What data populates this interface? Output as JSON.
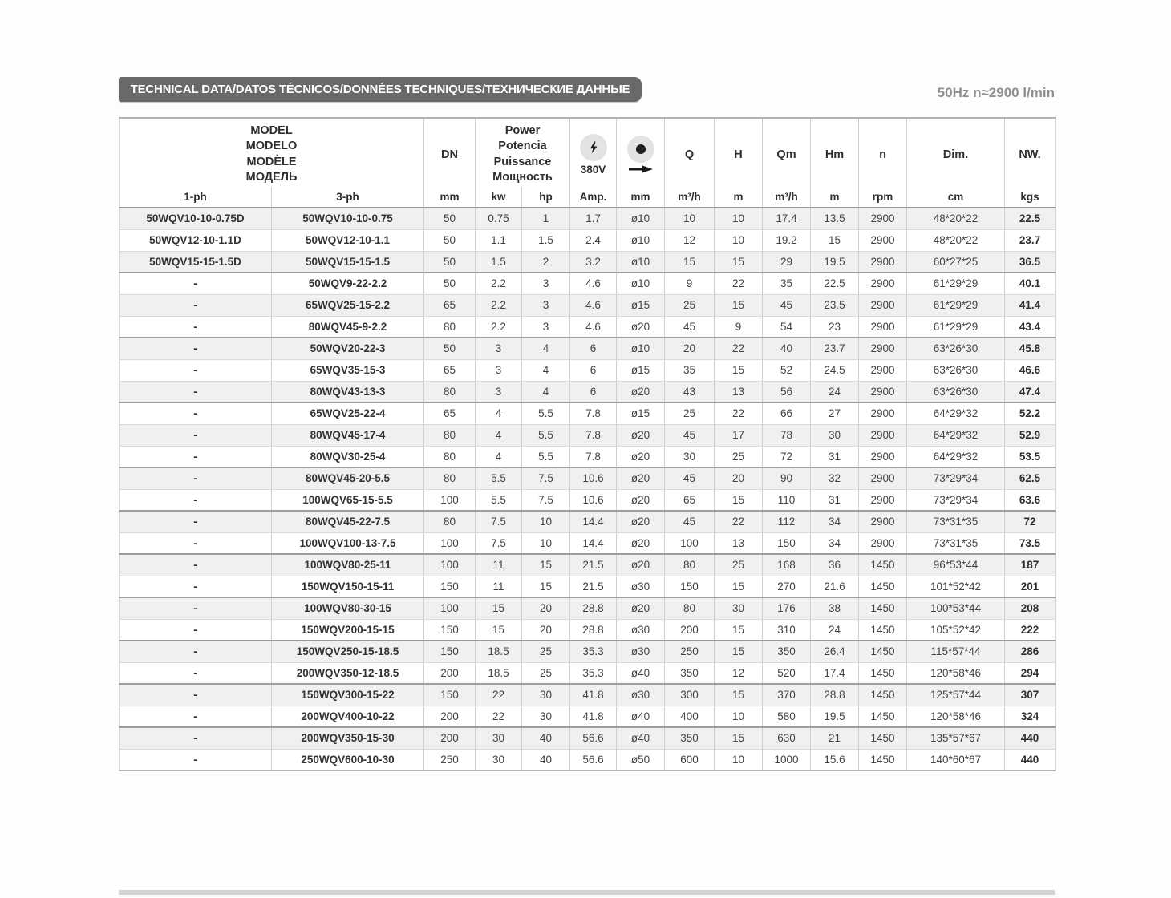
{
  "header": {
    "title": "TECHNICAL DATA/DATOS TÉCNICOS/DONNÉES TECHNIQUES/ТЕХНИЧЕСКИЕ ДАННЫЕ",
    "frequency_note": "50Hz  n≈2900 l/min"
  },
  "icons": {
    "voltage": "lightning-bolt-icon",
    "free_passage": "solids-dot-arrow-icon"
  },
  "table": {
    "model_header": [
      "MODEL",
      "MODELO",
      "MODÈLE",
      "МОДЕЛЬ"
    ],
    "power_header": [
      "Power",
      "Potencia",
      "Puissance",
      "Мощность"
    ],
    "col_headers": {
      "dn": "DN",
      "volt": "380V",
      "q": "Q",
      "h": "H",
      "qm": "Qm",
      "hm": "Hm",
      "n": "n",
      "dim": "Dim.",
      "nw": "NW."
    },
    "units": [
      "1-ph",
      "3-ph",
      "mm",
      "kw",
      "hp",
      "Amp.",
      "mm",
      "m³/h",
      "m",
      "m³/h",
      "m",
      "rpm",
      "cm",
      "kgs"
    ],
    "rows": [
      [
        "50WQV10-10-0.75D",
        "50WQV10-10-0.75",
        "50",
        "0.75",
        "1",
        "1.7",
        "ø10",
        "10",
        "10",
        "17.4",
        "13.5",
        "2900",
        "48*20*22",
        "22.5"
      ],
      [
        "50WQV12-10-1.1D",
        "50WQV12-10-1.1",
        "50",
        "1.1",
        "1.5",
        "2.4",
        "ø10",
        "12",
        "10",
        "19.2",
        "15",
        "2900",
        "48*20*22",
        "23.7"
      ],
      [
        "50WQV15-15-1.5D",
        "50WQV15-15-1.5",
        "50",
        "1.5",
        "2",
        "3.2",
        "ø10",
        "15",
        "15",
        "29",
        "19.5",
        "2900",
        "60*27*25",
        "36.5"
      ],
      [
        "-",
        "50WQV9-22-2.2",
        "50",
        "2.2",
        "3",
        "4.6",
        "ø10",
        "9",
        "22",
        "35",
        "22.5",
        "2900",
        "61*29*29",
        "40.1"
      ],
      [
        "-",
        "65WQV25-15-2.2",
        "65",
        "2.2",
        "3",
        "4.6",
        "ø15",
        "25",
        "15",
        "45",
        "23.5",
        "2900",
        "61*29*29",
        "41.4"
      ],
      [
        "-",
        "80WQV45-9-2.2",
        "80",
        "2.2",
        "3",
        "4.6",
        "ø20",
        "45",
        "9",
        "54",
        "23",
        "2900",
        "61*29*29",
        "43.4"
      ],
      [
        "-",
        "50WQV20-22-3",
        "50",
        "3",
        "4",
        "6",
        "ø10",
        "20",
        "22",
        "40",
        "23.7",
        "2900",
        "63*26*30",
        "45.8"
      ],
      [
        "-",
        "65WQV35-15-3",
        "65",
        "3",
        "4",
        "6",
        "ø15",
        "35",
        "15",
        "52",
        "24.5",
        "2900",
        "63*26*30",
        "46.6"
      ],
      [
        "-",
        "80WQV43-13-3",
        "80",
        "3",
        "4",
        "6",
        "ø20",
        "43",
        "13",
        "56",
        "24",
        "2900",
        "63*26*30",
        "47.4"
      ],
      [
        "-",
        "65WQV25-22-4",
        "65",
        "4",
        "5.5",
        "7.8",
        "ø15",
        "25",
        "22",
        "66",
        "27",
        "2900",
        "64*29*32",
        "52.2"
      ],
      [
        "-",
        "80WQV45-17-4",
        "80",
        "4",
        "5.5",
        "7.8",
        "ø20",
        "45",
        "17",
        "78",
        "30",
        "2900",
        "64*29*32",
        "52.9"
      ],
      [
        "-",
        "80WQV30-25-4",
        "80",
        "4",
        "5.5",
        "7.8",
        "ø20",
        "30",
        "25",
        "72",
        "31",
        "2900",
        "64*29*32",
        "53.5"
      ],
      [
        "-",
        "80WQV45-20-5.5",
        "80",
        "5.5",
        "7.5",
        "10.6",
        "ø20",
        "45",
        "20",
        "90",
        "32",
        "2900",
        "73*29*34",
        "62.5"
      ],
      [
        "-",
        "100WQV65-15-5.5",
        "100",
        "5.5",
        "7.5",
        "10.6",
        "ø20",
        "65",
        "15",
        "110",
        "31",
        "2900",
        "73*29*34",
        "63.6"
      ],
      [
        "-",
        "80WQV45-22-7.5",
        "80",
        "7.5",
        "10",
        "14.4",
        "ø20",
        "45",
        "22",
        "112",
        "34",
        "2900",
        "73*31*35",
        "72"
      ],
      [
        "-",
        "100WQV100-13-7.5",
        "100",
        "7.5",
        "10",
        "14.4",
        "ø20",
        "100",
        "13",
        "150",
        "34",
        "2900",
        "73*31*35",
        "73.5"
      ],
      [
        "-",
        "100WQV80-25-11",
        "100",
        "11",
        "15",
        "21.5",
        "ø20",
        "80",
        "25",
        "168",
        "36",
        "1450",
        "96*53*44",
        "187"
      ],
      [
        "-",
        "150WQV150-15-11",
        "150",
        "11",
        "15",
        "21.5",
        "ø30",
        "150",
        "15",
        "270",
        "21.6",
        "1450",
        "101*52*42",
        "201"
      ],
      [
        "-",
        "100WQV80-30-15",
        "100",
        "15",
        "20",
        "28.8",
        "ø20",
        "80",
        "30",
        "176",
        "38",
        "1450",
        "100*53*44",
        "208"
      ],
      [
        "-",
        "150WQV200-15-15",
        "150",
        "15",
        "20",
        "28.8",
        "ø30",
        "200",
        "15",
        "310",
        "24",
        "1450",
        "105*52*42",
        "222"
      ],
      [
        "-",
        "150WQV250-15-18.5",
        "150",
        "18.5",
        "25",
        "35.3",
        "ø30",
        "250",
        "15",
        "350",
        "26.4",
        "1450",
        "115*57*44",
        "286"
      ],
      [
        "-",
        "200WQV350-12-18.5",
        "200",
        "18.5",
        "25",
        "35.3",
        "ø40",
        "350",
        "12",
        "520",
        "17.4",
        "1450",
        "120*58*46",
        "294"
      ],
      [
        "-",
        "150WQV300-15-22",
        "150",
        "22",
        "30",
        "41.8",
        "ø30",
        "300",
        "15",
        "370",
        "28.8",
        "1450",
        "125*57*44",
        "307"
      ],
      [
        "-",
        "200WQV400-10-22",
        "200",
        "22",
        "30",
        "41.8",
        "ø40",
        "400",
        "10",
        "580",
        "19.5",
        "1450",
        "120*58*46",
        "324"
      ],
      [
        "-",
        "200WQV350-15-30",
        "200",
        "30",
        "40",
        "56.6",
        "ø40",
        "350",
        "15",
        "630",
        "21",
        "1450",
        "135*57*67",
        "440"
      ],
      [
        "-",
        "250WQV600-10-30",
        "250",
        "30",
        "40",
        "56.6",
        "ø50",
        "600",
        "10",
        "1000",
        "15.6",
        "1450",
        "140*60*67",
        "440"
      ]
    ]
  }
}
